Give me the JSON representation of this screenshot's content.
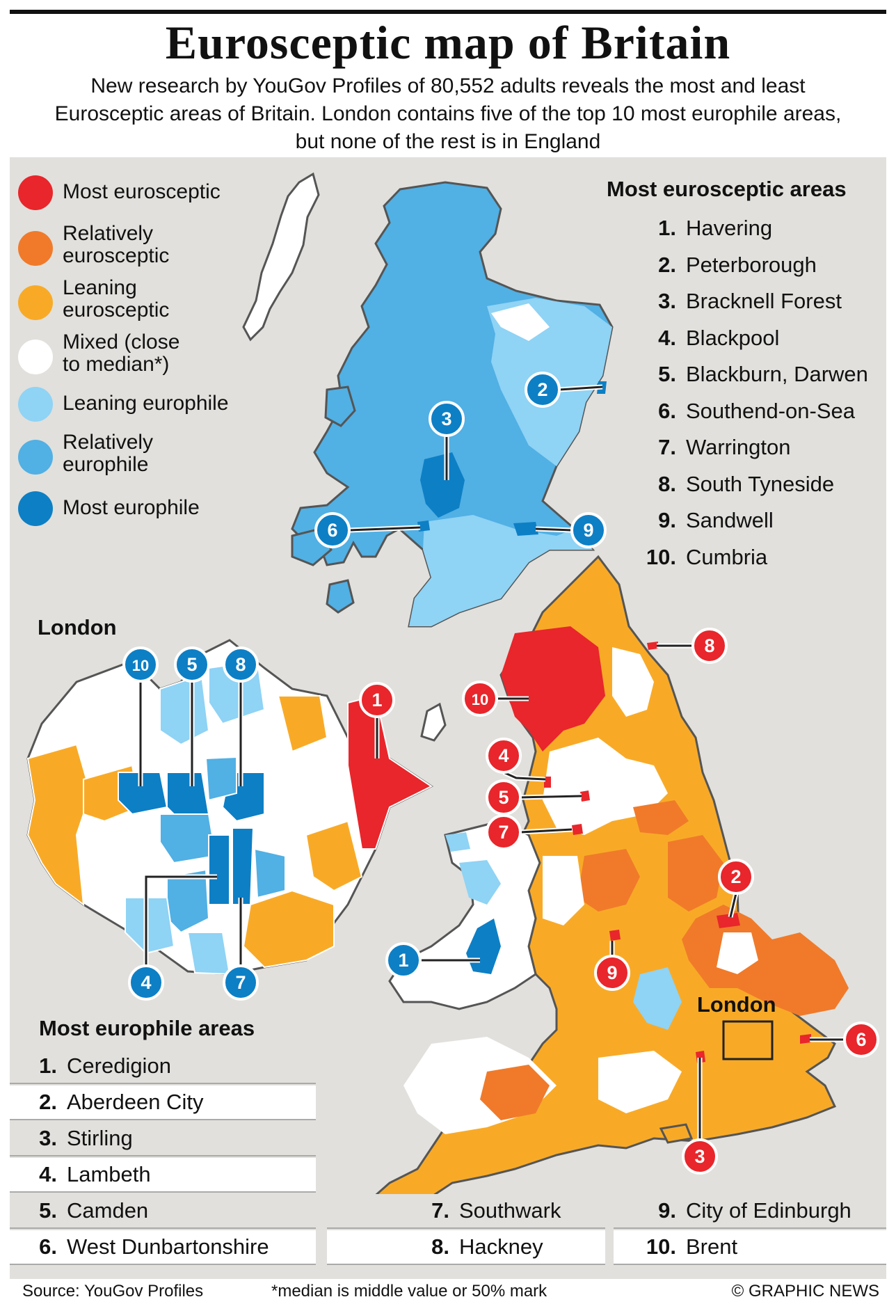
{
  "title": "Eurosceptic map of Britain",
  "subtitle": "New research by YouGov Profiles of 80,552 adults reveals the most and least Eurosceptic areas of Britain. London contains five of the top 10 most europhile areas, but none of the rest is in England",
  "colors": {
    "most_eurosceptic": "#e8262b",
    "relatively_eurosceptic": "#f07a2a",
    "leaning_eurosceptic": "#f8aa27",
    "mixed": "#ffffff",
    "leaning_europhile": "#8fd3f5",
    "relatively_europhile": "#51b0e4",
    "most_europhile": "#0d7fc5",
    "background": "#e1e0dc"
  },
  "legend": [
    {
      "label": "Most eurosceptic",
      "color": "#e8262b"
    },
    {
      "label": "Relatively eurosceptic",
      "line1": "Relatively",
      "line2": "eurosceptic",
      "color": "#f07a2a"
    },
    {
      "label": "Leaning eurosceptic",
      "line1": "Leaning",
      "line2": "eurosceptic",
      "color": "#f8aa27"
    },
    {
      "label": "Mixed (close to median*)",
      "line1": "Mixed (close",
      "line2": "to median*)",
      "color": "#ffffff"
    },
    {
      "label": "Leaning europhile",
      "color": "#8fd3f5"
    },
    {
      "label": "Relatively europhile",
      "line1": "Relatively",
      "line2": "europhile",
      "color": "#51b0e4"
    },
    {
      "label": "Most europhile",
      "color": "#0d7fc5"
    }
  ],
  "eurosceptic_heading": "Most eurosceptic areas",
  "eurosceptic_areas": [
    {
      "rank": "1.",
      "name": "Havering"
    },
    {
      "rank": "2.",
      "name": "Peterborough"
    },
    {
      "rank": "3.",
      "name": "Bracknell Forest"
    },
    {
      "rank": "4.",
      "name": "Blackpool"
    },
    {
      "rank": "5.",
      "name": "Blackburn, Darwen"
    },
    {
      "rank": "6.",
      "name": "Southend-on-Sea"
    },
    {
      "rank": "7.",
      "name": "Warrington"
    },
    {
      "rank": "8.",
      "name": "South Tyneside"
    },
    {
      "rank": "9.",
      "name": "Sandwell"
    },
    {
      "rank": "10.",
      "name": "Cumbria"
    }
  ],
  "europhile_heading": "Most europhile areas",
  "europhile_areas": [
    {
      "rank": "1.",
      "name": "Ceredigion"
    },
    {
      "rank": "2.",
      "name": "Aberdeen City"
    },
    {
      "rank": "3.",
      "name": "Stirling"
    },
    {
      "rank": "4.",
      "name": "Lambeth"
    },
    {
      "rank": "5.",
      "name": "Camden"
    },
    {
      "rank": "6.",
      "name": "West Dunbartonshire"
    },
    {
      "rank": "7.",
      "name": "Southwark"
    },
    {
      "rank": "8.",
      "name": "Hackney"
    },
    {
      "rank": "9.",
      "name": "City of Edinburgh"
    },
    {
      "rank": "10.",
      "name": "Brent"
    }
  ],
  "london_inset_label": "London",
  "london_map_label": "London",
  "badge_numbers": {
    "europhile": [
      "1",
      "2",
      "3",
      "6",
      "9",
      "10",
      "5",
      "8",
      "4",
      "7"
    ],
    "eurosceptic": [
      "1",
      "2",
      "3",
      "4",
      "5",
      "6",
      "7",
      "8",
      "9",
      "10"
    ]
  },
  "footer": {
    "source": "Source: YouGov Profiles",
    "note": "*median is middle value or 50% mark",
    "credit": "© GRAPHIC NEWS"
  }
}
